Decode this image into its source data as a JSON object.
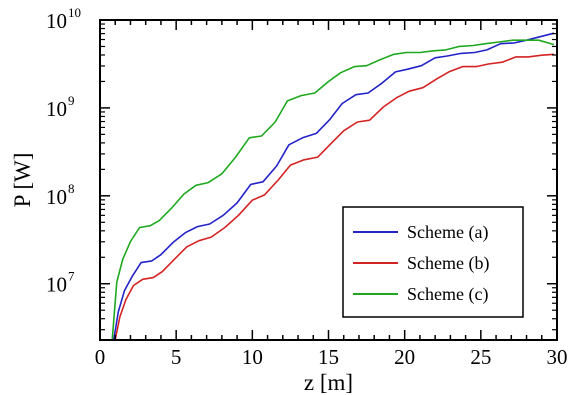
{
  "chart_data": {
    "type": "line",
    "xlabel": "z [m]",
    "ylabel": "P [W]",
    "xlim": [
      0,
      30
    ],
    "ylim_log10": [
      6.36,
      10
    ],
    "yscale": "log",
    "x_ticks": [
      {
        "value": 0,
        "label": "0"
      },
      {
        "value": 5,
        "label": "5"
      },
      {
        "value": 10,
        "label": "10"
      },
      {
        "value": 15,
        "label": "15"
      },
      {
        "value": 20,
        "label": "20"
      },
      {
        "value": 25,
        "label": "25"
      },
      {
        "value": 30,
        "label": "30"
      }
    ],
    "y_ticks": [
      {
        "exp": 7,
        "base": "10",
        "power": "7"
      },
      {
        "exp": 8,
        "base": "10",
        "power": "8"
      },
      {
        "exp": 9,
        "base": "10",
        "power": "9"
      },
      {
        "exp": 10,
        "base": "10",
        "power": "10"
      }
    ],
    "grid": false,
    "legend_position": "bottom-right",
    "series": [
      {
        "name": "Scheme (a)",
        "color": "#2323c8",
        "x": [
          0.9,
          1.2,
          1.6,
          2.1,
          2.7,
          3.4,
          4.0,
          4.8,
          5.6,
          6.4,
          7.2,
          8.1,
          9.0,
          9.9,
          10.7,
          11.6,
          12.4,
          13.3,
          14.2,
          15.1,
          15.9,
          16.8,
          17.6,
          18.5,
          19.4,
          20.2,
          21.1,
          22.0,
          22.8,
          23.7,
          24.6,
          25.4,
          26.3,
          27.2,
          28.0,
          28.9,
          29.8
        ],
        "y_log10": [
          6.36,
          6.68,
          6.92,
          7.08,
          7.24,
          7.26,
          7.33,
          7.47,
          7.58,
          7.65,
          7.68,
          7.78,
          7.92,
          8.13,
          8.16,
          8.34,
          8.58,
          8.66,
          8.71,
          8.87,
          9.05,
          9.15,
          9.17,
          9.28,
          9.41,
          9.44,
          9.48,
          9.57,
          9.59,
          9.62,
          9.63,
          9.66,
          9.73,
          9.74,
          9.77,
          9.81,
          9.85
        ]
      },
      {
        "name": "Scheme (b)",
        "color": "#d42323",
        "x": [
          1.0,
          1.3,
          1.7,
          2.2,
          2.8,
          3.5,
          4.1,
          4.9,
          5.7,
          6.5,
          7.3,
          8.2,
          9.1,
          10.0,
          10.8,
          11.7,
          12.5,
          13.4,
          14.3,
          15.2,
          16.0,
          16.9,
          17.7,
          18.6,
          19.5,
          20.3,
          21.2,
          22.1,
          22.9,
          23.8,
          24.7,
          25.5,
          26.4,
          27.3,
          28.1,
          29.0,
          29.8
        ],
        "y_log10": [
          6.36,
          6.62,
          6.82,
          6.98,
          7.05,
          7.07,
          7.14,
          7.28,
          7.42,
          7.49,
          7.53,
          7.64,
          7.78,
          7.95,
          8.01,
          8.18,
          8.35,
          8.41,
          8.44,
          8.6,
          8.74,
          8.84,
          8.86,
          9.01,
          9.12,
          9.19,
          9.23,
          9.33,
          9.41,
          9.47,
          9.47,
          9.5,
          9.52,
          9.58,
          9.58,
          9.6,
          9.61
        ]
      },
      {
        "name": "Scheme (c)",
        "color": "#1fa81f",
        "x": [
          0.8,
          1.1,
          1.5,
          2.0,
          2.6,
          3.3,
          3.9,
          4.7,
          5.5,
          6.3,
          7.1,
          8.0,
          8.9,
          9.8,
          10.6,
          11.5,
          12.3,
          13.2,
          14.1,
          15.0,
          15.8,
          16.7,
          17.5,
          18.4,
          19.3,
          20.1,
          21.0,
          21.9,
          22.7,
          23.6,
          24.5,
          25.3,
          26.2,
          27.1,
          27.9,
          28.8,
          29.8
        ],
        "y_log10": [
          6.36,
          7.02,
          7.28,
          7.48,
          7.64,
          7.66,
          7.72,
          7.86,
          8.02,
          8.12,
          8.15,
          8.25,
          8.44,
          8.66,
          8.68,
          8.84,
          9.08,
          9.14,
          9.17,
          9.3,
          9.4,
          9.47,
          9.48,
          9.55,
          9.61,
          9.63,
          9.63,
          9.65,
          9.66,
          9.7,
          9.71,
          9.73,
          9.75,
          9.77,
          9.77,
          9.77,
          9.72
        ]
      }
    ]
  }
}
